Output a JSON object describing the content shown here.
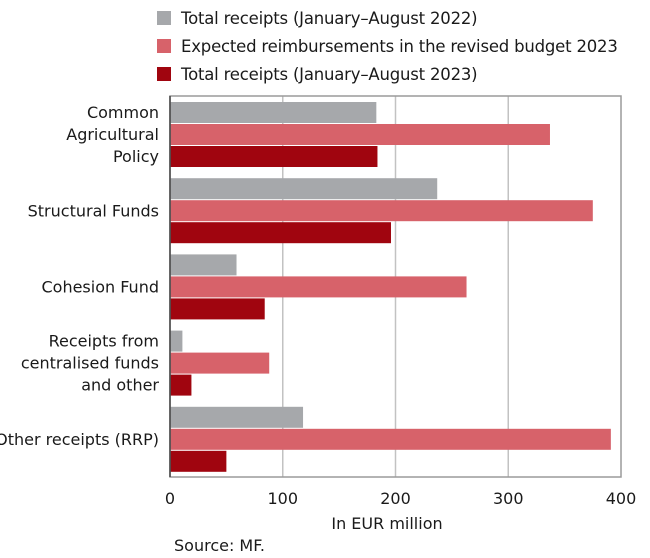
{
  "chart_data": {
    "type": "bar",
    "orientation": "horizontal",
    "categories": [
      [
        "Common",
        "Agricultural",
        "Policy"
      ],
      [
        "Structural Funds"
      ],
      [
        "Cohesion Fund"
      ],
      [
        "Receipts from",
        "centralised funds",
        "and other"
      ],
      [
        "Other receipts (RRP)"
      ]
    ],
    "series": [
      {
        "name": "Total receipts (January–August 2022)",
        "color": "#A6A8AB",
        "values": [
          183,
          237,
          59,
          11,
          118
        ]
      },
      {
        "name": "Expected reimbursements in the revised budget 2023",
        "color": "#D7626A",
        "values": [
          337,
          375,
          263,
          88,
          391
        ]
      },
      {
        "name": "Total receipts (January–August 2023)",
        "color": "#A0050F",
        "values": [
          184,
          196,
          84,
          19,
          50
        ]
      }
    ],
    "xlabel": "In EUR million",
    "xlim": [
      0,
      400
    ],
    "xticks": [
      "0",
      "100",
      "200",
      "300",
      "400"
    ],
    "grid": "vertical",
    "legend_position": "top"
  },
  "source_note": "Source: MF."
}
